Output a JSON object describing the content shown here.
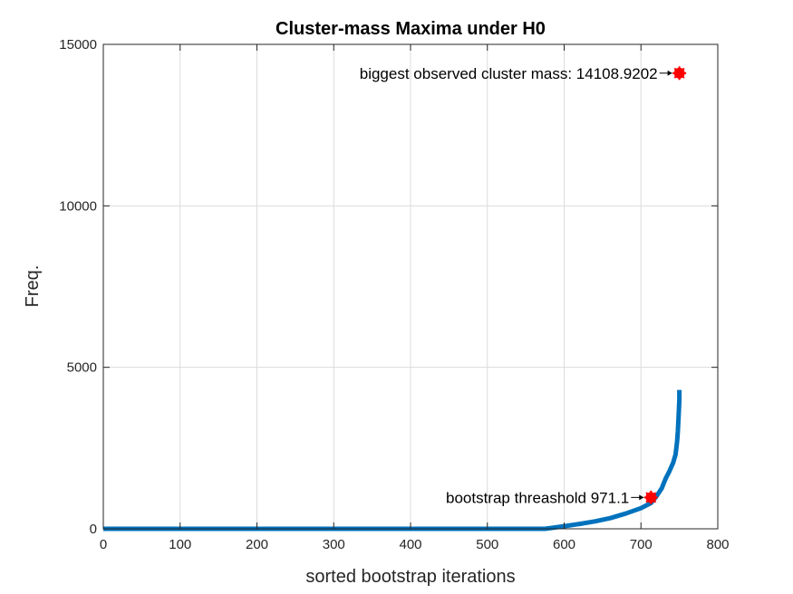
{
  "chart_data": {
    "type": "line",
    "title": "Cluster-mass Maxima under H0",
    "xlabel": "sorted bootstrap iterations",
    "ylabel": "Freq.",
    "xlim": [
      0,
      800
    ],
    "ylim": [
      0,
      15000
    ],
    "xticks": [
      0,
      100,
      200,
      300,
      400,
      500,
      600,
      700,
      800
    ],
    "yticks": [
      0,
      5000,
      10000,
      15000
    ],
    "grid": true,
    "series": [
      {
        "name": "",
        "color": "#0072BD",
        "points": [
          [
            0,
            0
          ],
          [
            100,
            0
          ],
          [
            200,
            0
          ],
          [
            300,
            0
          ],
          [
            400,
            0
          ],
          [
            500,
            0
          ],
          [
            575,
            0
          ],
          [
            585,
            30
          ],
          [
            600,
            80
          ],
          [
            620,
            150
          ],
          [
            640,
            230
          ],
          [
            660,
            330
          ],
          [
            680,
            470
          ],
          [
            700,
            640
          ],
          [
            713,
            800
          ],
          [
            720,
            1000
          ],
          [
            727,
            1250
          ],
          [
            732,
            1550
          ],
          [
            737,
            1780
          ],
          [
            742,
            2050
          ],
          [
            745,
            2300
          ],
          [
            747,
            2700
          ],
          [
            748,
            3000
          ],
          [
            749,
            3500
          ],
          [
            750,
            4000
          ],
          [
            750,
            4300
          ]
        ]
      }
    ],
    "markers": [
      {
        "x": 713,
        "y": 971.1,
        "color": "#FF0000"
      },
      {
        "x": 750,
        "y": 14108.9202,
        "color": "#FF0000"
      }
    ],
    "annotations": [
      {
        "text": "bootstrap threashold 971.1",
        "x": 713,
        "y": 971.1
      },
      {
        "text": "biggest observed cluster mass: 14108.9202",
        "x": 750,
        "y": 14108.9202
      }
    ]
  }
}
